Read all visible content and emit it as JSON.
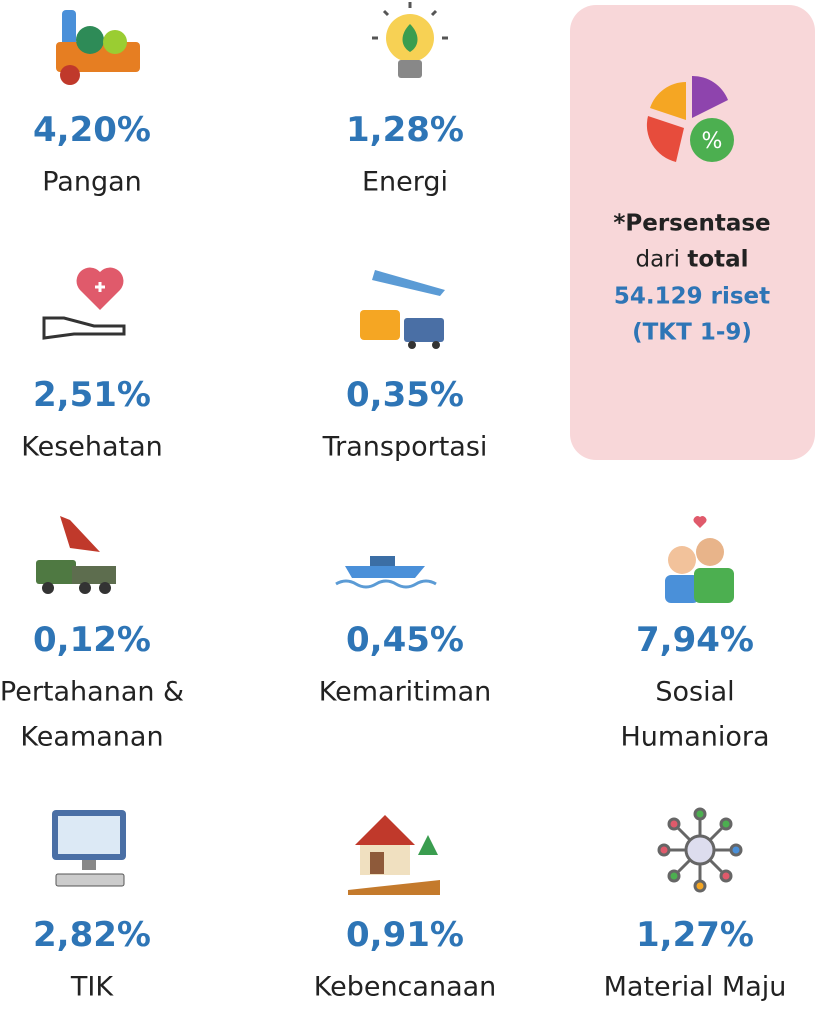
{
  "items": [
    {
      "value": "4,20%",
      "label": [
        "Pangan"
      ]
    },
    {
      "value": "1,28%",
      "label": [
        "Energi"
      ]
    },
    {
      "value": "2,51%",
      "label": [
        "Kesehatan"
      ]
    },
    {
      "value": "0,35%",
      "label": [
        "Transportasi"
      ]
    },
    {
      "value": "0,12%",
      "label": [
        "Pertahanan &",
        "Keamanan"
      ]
    },
    {
      "value": "0,45%",
      "label": [
        "Kemaritiman"
      ]
    },
    {
      "value": "7,94%",
      "label": [
        "Sosial",
        "Humaniora"
      ]
    },
    {
      "value": "2,82%",
      "label": [
        "TIK"
      ]
    },
    {
      "value": "0,91%",
      "label": [
        "Kebencanaan"
      ]
    },
    {
      "value": "1,27%",
      "label": [
        "Material Maju"
      ]
    }
  ],
  "note": {
    "heading": "*Persentase",
    "prefix": "dari",
    "emphasis": "total",
    "count": "54.129 riset",
    "scope": "(TKT 1-9)"
  }
}
